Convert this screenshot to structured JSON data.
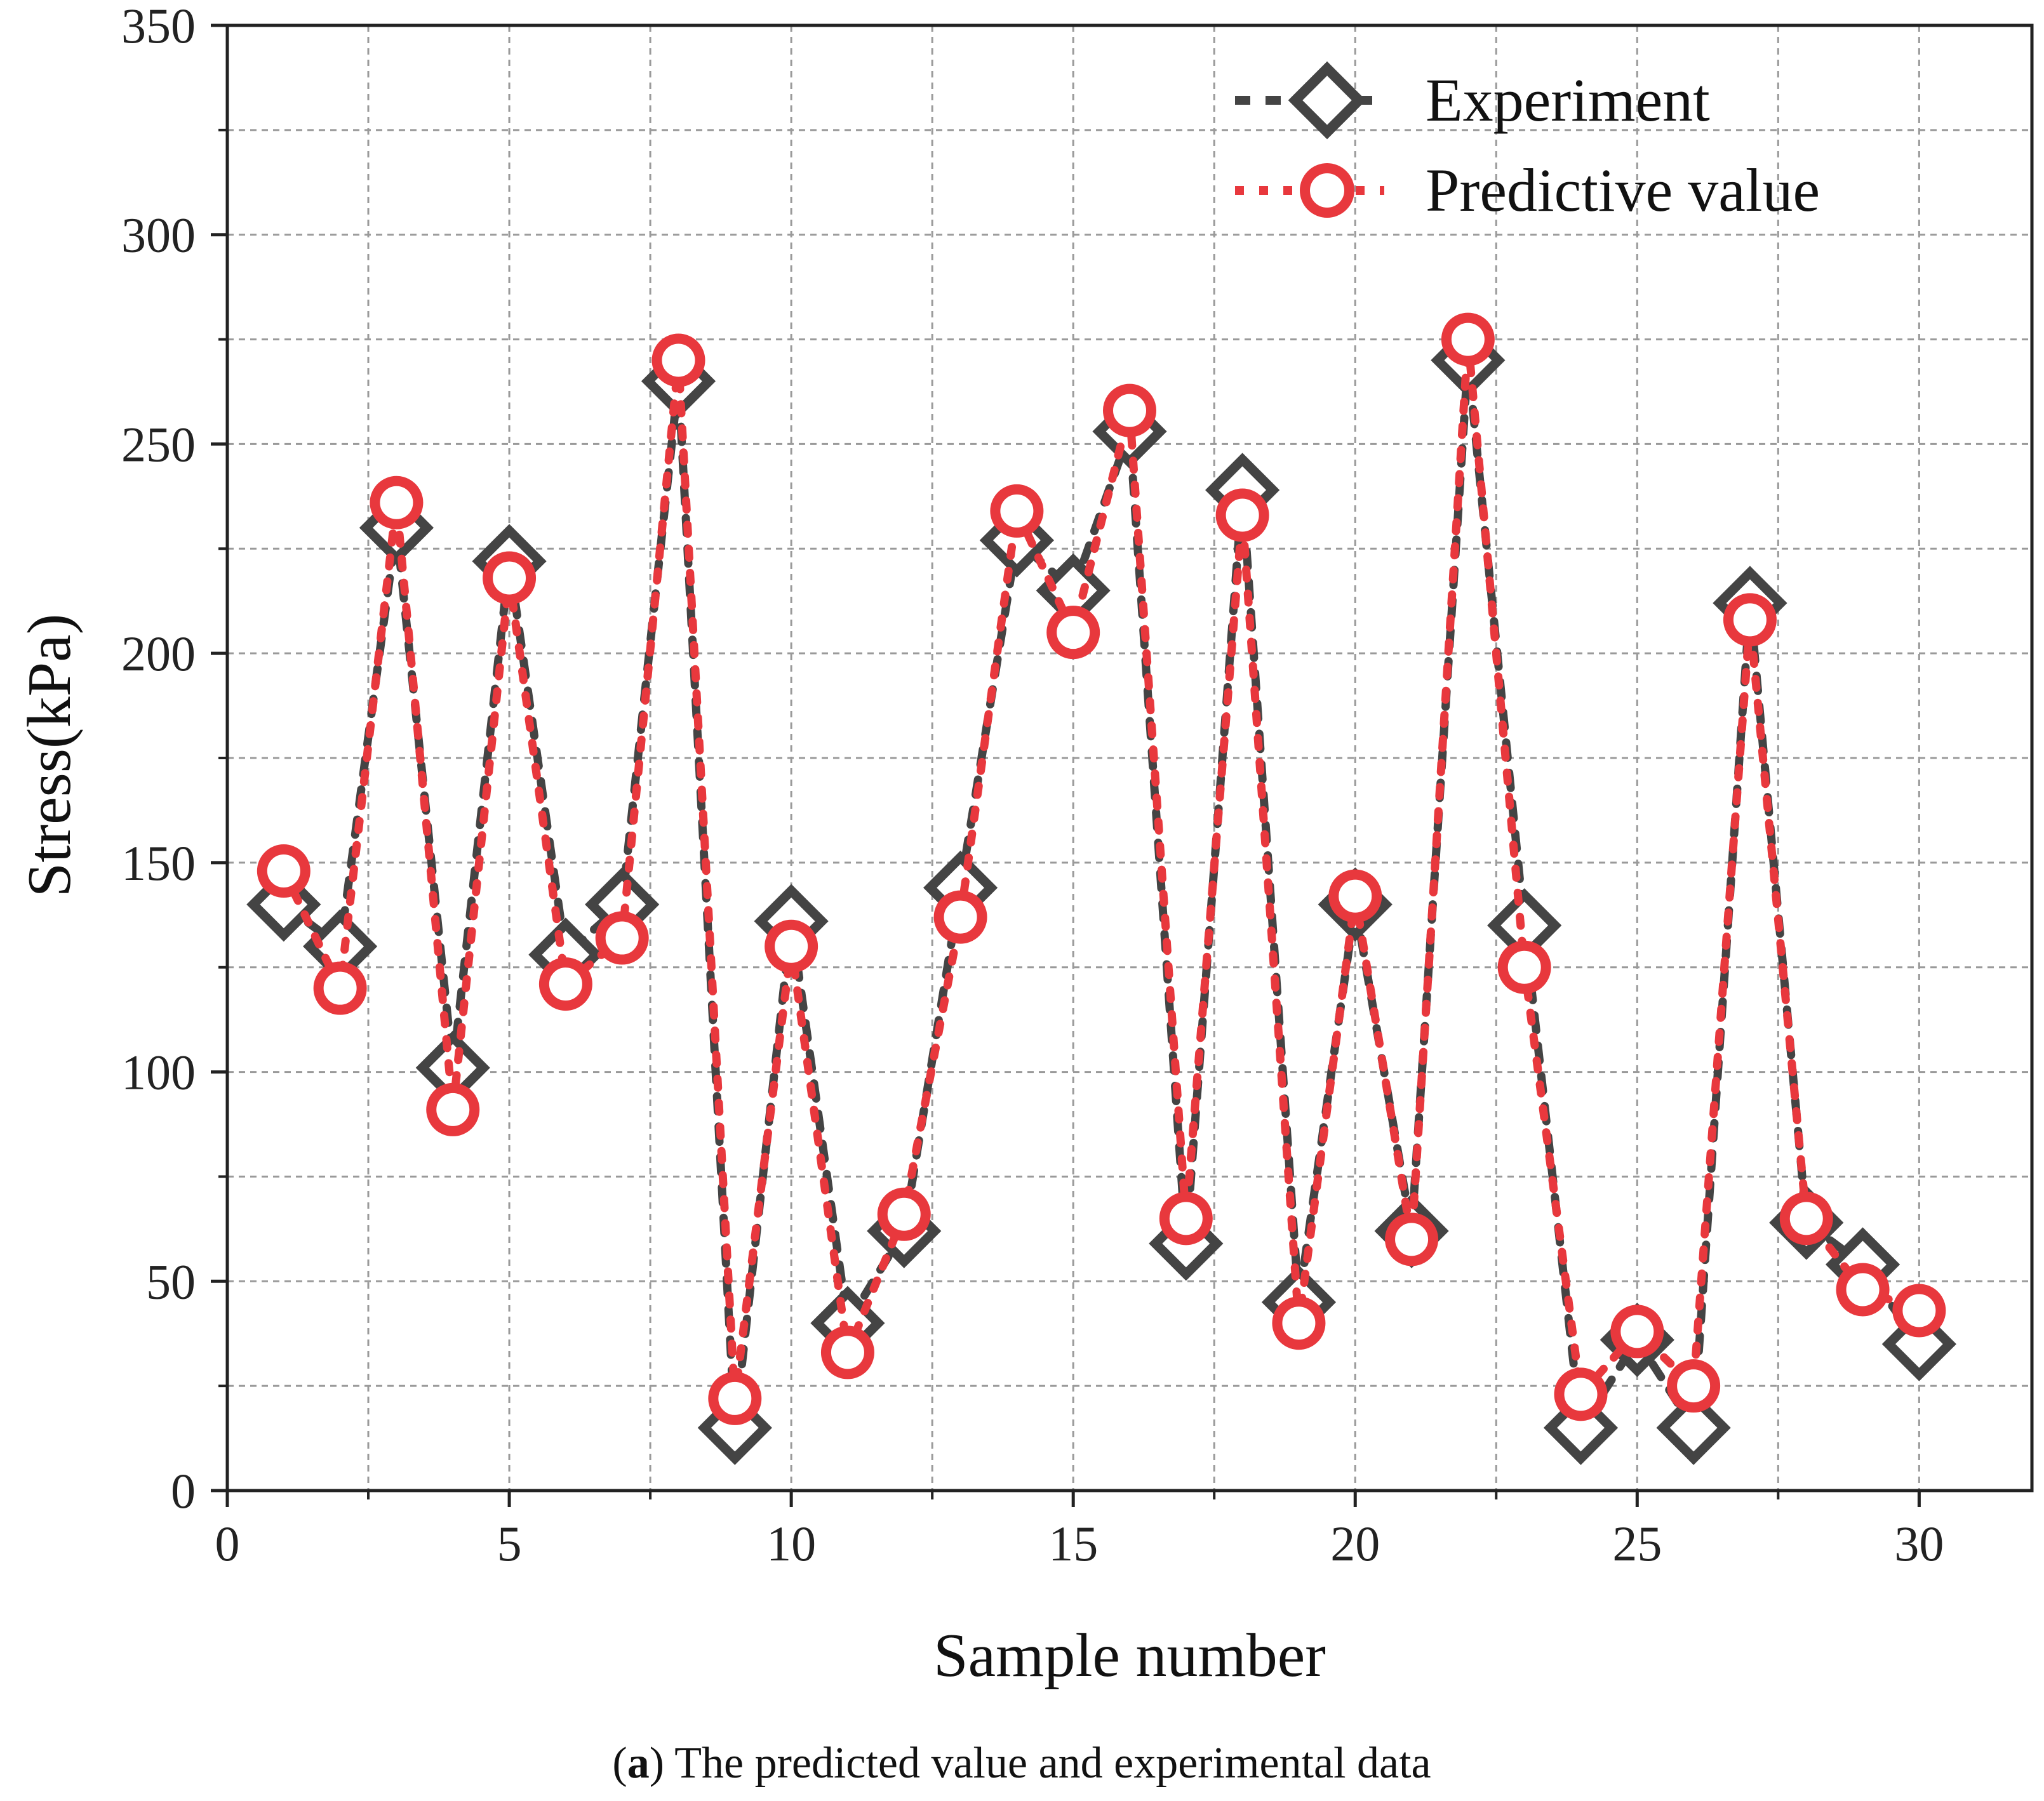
{
  "chart_data": {
    "type": "line",
    "title": "",
    "xlabel": "Sample number",
    "ylabel": "Stress(kPa)",
    "xlim": [
      0,
      32
    ],
    "ylim": [
      0,
      350
    ],
    "xticks": [
      0,
      5,
      10,
      15,
      20,
      25,
      30
    ],
    "xtick_labels": [
      "0",
      "5",
      "10",
      "15",
      "20",
      "25",
      "30"
    ],
    "yticks": [
      0,
      50,
      100,
      150,
      200,
      250,
      300,
      350
    ],
    "ytick_labels": [
      "0",
      "50",
      "100",
      "150",
      "200",
      "250",
      "300",
      "350"
    ],
    "grid": true,
    "legend_position": "top-right",
    "x": [
      1,
      2,
      3,
      4,
      5,
      6,
      7,
      8,
      9,
      10,
      11,
      12,
      13,
      14,
      15,
      16,
      17,
      18,
      19,
      20,
      21,
      22,
      23,
      24,
      25,
      26,
      27,
      28,
      29,
      30
    ],
    "series": [
      {
        "name": "Experiment",
        "marker": "diamond",
        "color": "#444444",
        "values": [
          140,
          130,
          230,
          101,
          222,
          128,
          140,
          265,
          15,
          136,
          40,
          62,
          144,
          227,
          215,
          253,
          59,
          239,
          45,
          140,
          62,
          270,
          135,
          15,
          36,
          15,
          212,
          64,
          54,
          35
        ]
      },
      {
        "name": "Predictive value",
        "marker": "circle",
        "color": "#e8383d",
        "values": [
          148,
          120,
          236,
          91,
          218,
          121,
          132,
          270,
          22,
          130,
          33,
          66,
          137,
          234,
          205,
          258,
          65,
          233,
          40,
          142,
          60,
          275,
          125,
          23,
          38,
          25,
          208,
          65,
          48,
          43
        ]
      }
    ]
  },
  "caption": {
    "label": "a",
    "text": "The predicted value and experimental data"
  }
}
